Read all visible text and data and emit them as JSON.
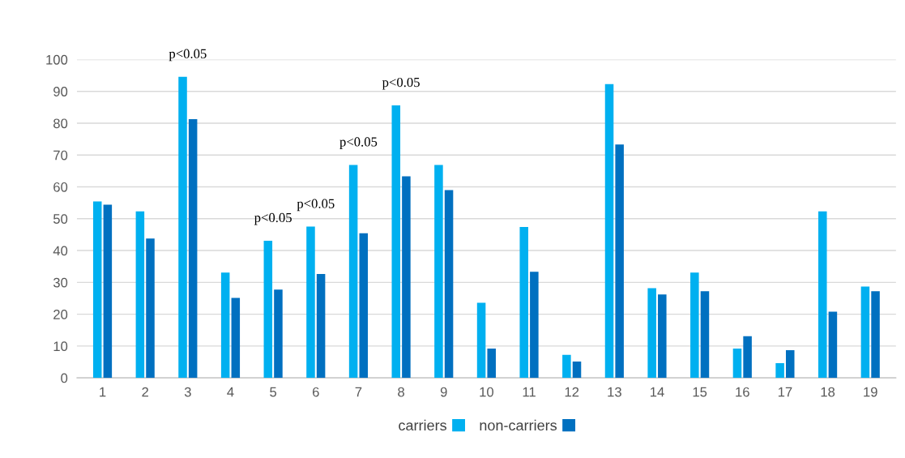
{
  "chart_data": {
    "type": "bar",
    "categories": [
      "1",
      "2",
      "3",
      "4",
      "5",
      "6",
      "7",
      "8",
      "9",
      "10",
      "11",
      "12",
      "13",
      "14",
      "15",
      "16",
      "17",
      "18",
      "19"
    ],
    "series": [
      {
        "name": "carriers",
        "color": "#00b0f0",
        "values": [
          55.4,
          52.3,
          94.6,
          33.1,
          43.1,
          47.5,
          66.9,
          85.6,
          66.9,
          23.6,
          47.4,
          7.2,
          92.3,
          28.2,
          33.1,
          9.2,
          4.6,
          52.3,
          28.7
        ]
      },
      {
        "name": "non-carriers",
        "color": "#0070c0",
        "values": [
          54.4,
          43.8,
          81.3,
          25.1,
          27.7,
          32.6,
          45.4,
          63.3,
          59.0,
          9.2,
          33.3,
          5.1,
          73.3,
          26.2,
          27.2,
          13.1,
          8.7,
          20.8,
          27.2
        ]
      }
    ],
    "ylim": [
      0,
      100
    ],
    "yticks": [
      0,
      10,
      20,
      30,
      40,
      50,
      60,
      70,
      80,
      90,
      100
    ],
    "grid": "y",
    "legend": "bottom",
    "annotations": [
      {
        "text": "p<0.05",
        "x": "3",
        "y": 94.6
      },
      {
        "text": "p<0.05",
        "x": "5",
        "y": 43.1
      },
      {
        "text": "p<0.05",
        "x": "6",
        "y": 47.5
      },
      {
        "text": "p<0.05",
        "x": "7",
        "y": 66.9
      },
      {
        "text": "p<0.05",
        "x": "8",
        "y": 85.6
      }
    ]
  }
}
